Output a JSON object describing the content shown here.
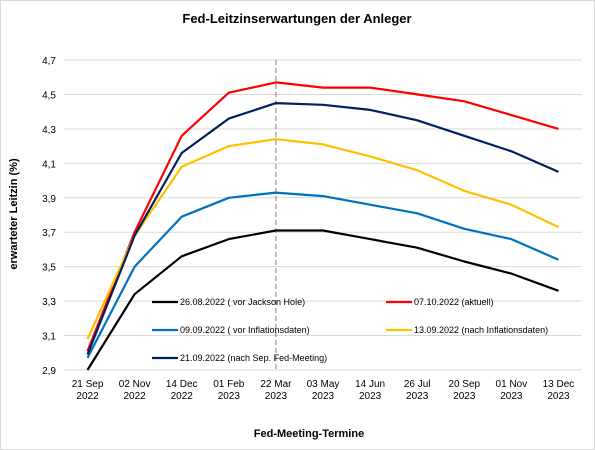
{
  "chart_data": {
    "type": "line",
    "title": "Fed-Leitzinserwartungen  der Anleger",
    "xlabel": "Fed-Meeting-Termine",
    "ylabel": "erwarteter Leitzin (%)",
    "ylim": [
      2.9,
      4.7
    ],
    "yticks": [
      "2,9",
      "3,1",
      "3,3",
      "3,5",
      "3,7",
      "3,9",
      "4,1",
      "4,3",
      "4,5",
      "4,7"
    ],
    "grid": "horizontal",
    "legend_position": "inside-bottom",
    "categories": [
      [
        "21 Sep",
        "2022"
      ],
      [
        "02 Nov",
        "2022"
      ],
      [
        "14 Dec",
        "2022"
      ],
      [
        "01 Feb",
        "2023"
      ],
      [
        "22 Mar",
        "2023"
      ],
      [
        "03 May",
        "2023"
      ],
      [
        "14 Jun",
        "2023"
      ],
      [
        "26 Jul",
        "2023"
      ],
      [
        "20 Sep",
        "2023"
      ],
      [
        "01 Nov",
        "2023"
      ],
      [
        "13 Dec",
        "2023"
      ]
    ],
    "marker_category_index": 4,
    "series": [
      {
        "name": "26.08.2022 ( vor Jackson Hole)",
        "color": "#000000",
        "values": [
          2.9,
          3.34,
          3.56,
          3.66,
          3.71,
          3.71,
          3.66,
          3.61,
          3.53,
          3.46,
          3.36
        ]
      },
      {
        "name": "07.10.2022 (aktuell)",
        "color": "#ff0000",
        "values": [
          3.01,
          3.7,
          4.26,
          4.51,
          4.57,
          4.54,
          4.54,
          4.5,
          4.46,
          4.38,
          4.3
        ]
      },
      {
        "name": "09.09.2022 ( vor Inflationsdaten)",
        "color": "#0070c0",
        "values": [
          2.97,
          3.5,
          3.79,
          3.9,
          3.93,
          3.91,
          3.86,
          3.81,
          3.72,
          3.66,
          3.54
        ]
      },
      {
        "name": "13.09.2022 (nach Inflationsdaten)",
        "color": "#ffc000",
        "values": [
          3.08,
          3.68,
          4.08,
          4.2,
          4.24,
          4.21,
          4.14,
          4.06,
          3.94,
          3.86,
          3.73
        ]
      },
      {
        "name": "21.09.2022 (nach Sep. Fed-Meeting)",
        "color": "#002060",
        "values": [
          2.99,
          3.68,
          4.16,
          4.36,
          4.45,
          4.44,
          4.41,
          4.35,
          4.26,
          4.17,
          4.05
        ]
      }
    ]
  }
}
